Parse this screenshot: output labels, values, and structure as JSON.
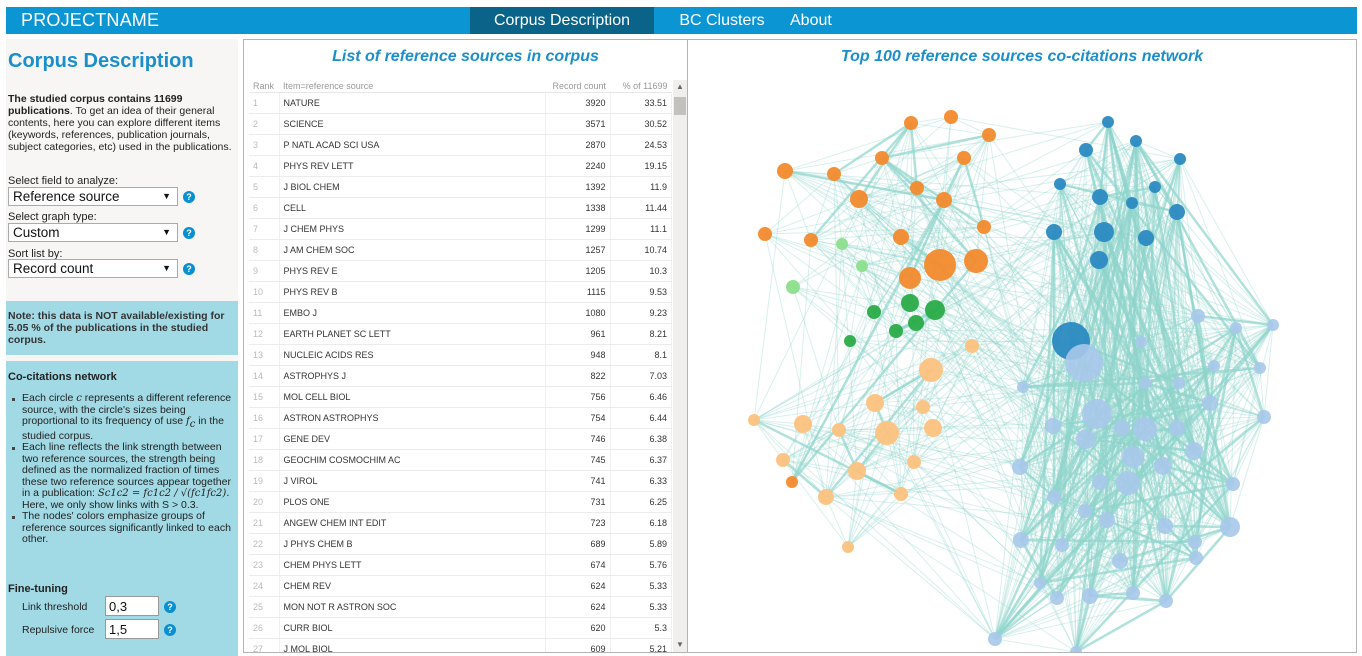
{
  "header": {
    "brand": "PROJECTNAME",
    "nav": [
      {
        "label": "Corpus Description",
        "active": true
      },
      {
        "label": "BC Clusters",
        "active": false
      },
      {
        "label": "About",
        "active": false
      }
    ]
  },
  "sidebar": {
    "title": "Corpus Description",
    "intro_bold": "The studied corpus contains 11699 publications",
    "intro_rest": ". To get an idea of their general contents, here you can explore different items (keywords, references, publication journals, subject categories, etc) used in the publications.",
    "fields": [
      {
        "label": "Select field to analyze:",
        "value": "Reference source"
      },
      {
        "label": "Select graph type:",
        "value": "Custom"
      },
      {
        "label": "Sort list by:",
        "value": "Record count"
      }
    ],
    "help_glyph": "?",
    "note": "Note: this data is NOT available/existing for 5.05 % of the publications in the studied corpus.",
    "cocitations": {
      "title": "Co-citations network",
      "bullet1_a": "Each circle ",
      "bullet1_var": "c",
      "bullet1_b": " represents a different reference source, with the circle's sizes being proportional to its frequency of use ",
      "bullet1_var2": "f",
      "bullet1_sub": "c",
      "bullet1_c": " in the studied corpus.",
      "bullet2_a": "Each line reflects the link strength between two reference sources, the strength being defined as the normalized fraction of times these two reference sources appear together in a publication: ",
      "bullet2_formula": "Sc1c2 = fc1c2 / √(fc1fc2).",
      "bullet2_b": "Here, we only show links with S > 0.3.",
      "bullet3": "The nodes' colors emphasize groups of reference sources significantly linked to each other."
    },
    "finetuning": {
      "title": "Fine-tuning",
      "link_threshold_label": "Link threshold",
      "link_threshold_value": "0,3",
      "repulsive_force_label": "Repulsive force",
      "repulsive_force_value": "1,5"
    }
  },
  "table": {
    "title": "List of reference sources in corpus",
    "columns": [
      "Rank",
      "Item=reference source",
      "Record count",
      "% of 11699"
    ],
    "rows": [
      [
        "1",
        "NATURE",
        "3920",
        "33.51"
      ],
      [
        "2",
        "SCIENCE",
        "3571",
        "30.52"
      ],
      [
        "3",
        "P NATL ACAD SCI USA",
        "2870",
        "24.53"
      ],
      [
        "4",
        "PHYS REV LETT",
        "2240",
        "19.15"
      ],
      [
        "5",
        "J BIOL CHEM",
        "1392",
        "11.9"
      ],
      [
        "6",
        "CELL",
        "1338",
        "11.44"
      ],
      [
        "7",
        "J CHEM PHYS",
        "1299",
        "11.1"
      ],
      [
        "8",
        "J AM CHEM SOC",
        "1257",
        "10.74"
      ],
      [
        "9",
        "PHYS REV E",
        "1205",
        "10.3"
      ],
      [
        "10",
        "PHYS REV B",
        "1115",
        "9.53"
      ],
      [
        "11",
        "EMBO J",
        "1080",
        "9.23"
      ],
      [
        "12",
        "EARTH PLANET SC LETT",
        "961",
        "8.21"
      ],
      [
        "13",
        "NUCLEIC ACIDS RES",
        "948",
        "8.1"
      ],
      [
        "14",
        "ASTROPHYS J",
        "822",
        "7.03"
      ],
      [
        "15",
        "MOL CELL BIOL",
        "756",
        "6.46"
      ],
      [
        "16",
        "ASTRON ASTROPHYS",
        "754",
        "6.44"
      ],
      [
        "17",
        "GENE DEV",
        "746",
        "6.38"
      ],
      [
        "18",
        "GEOCHIM COSMOCHIM AC",
        "745",
        "6.37"
      ],
      [
        "19",
        "J VIROL",
        "741",
        "6.33"
      ],
      [
        "20",
        "PLOS ONE",
        "731",
        "6.25"
      ],
      [
        "21",
        "ANGEW CHEM INT EDIT",
        "723",
        "6.18"
      ],
      [
        "22",
        "J PHYS CHEM B",
        "689",
        "5.89"
      ],
      [
        "23",
        "CHEM PHYS LETT",
        "674",
        "5.76"
      ],
      [
        "24",
        "CHEM REV",
        "624",
        "5.33"
      ],
      [
        "25",
        "MON NOT R ASTRON SOC",
        "624",
        "5.33"
      ],
      [
        "26",
        "CURR BIOL",
        "620",
        "5.3"
      ],
      [
        "27",
        "J MOL BIOL",
        "609",
        "5.21"
      ]
    ],
    "scroll_up_glyph": "▲",
    "scroll_down_glyph": "▼"
  },
  "network": {
    "title": "Top 100 reference sources co-citations network",
    "colors": {
      "orange": "#f28a2d",
      "light_orange": "#fcc27f",
      "green": "#2aab48",
      "light_green": "#8cdf8c",
      "blue": "#2b8ac1",
      "light_blue": "#a7c8ea",
      "link": "#8fd4cc"
    },
    "groups": [
      "orange",
      "light_orange",
      "green",
      "light_green",
      "blue",
      "light_blue"
    ]
  }
}
